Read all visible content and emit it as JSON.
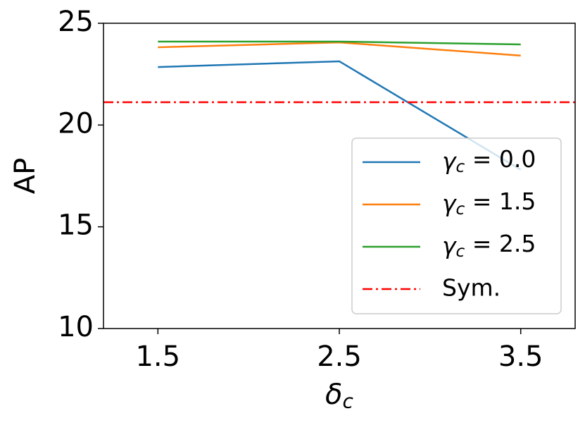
{
  "chart_data": {
    "type": "line",
    "x": [
      1.5,
      2.5,
      3.5
    ],
    "xlabel": "δc",
    "ylabel": "AP",
    "xlim": [
      1.2,
      3.8
    ],
    "ylim": [
      10,
      25
    ],
    "xticks": [
      1.5,
      2.5,
      3.5
    ],
    "yticks": [
      10,
      15,
      20,
      25
    ],
    "series": [
      {
        "name": "γc = 0.0",
        "color": "#1f77b4",
        "values": [
          22.85,
          23.13,
          17.8
        ]
      },
      {
        "name": "γc = 1.5",
        "color": "#ff7f0e",
        "values": [
          23.82,
          24.06,
          23.41
        ]
      },
      {
        "name": "γc = 2.5",
        "color": "#2ca02c",
        "values": [
          24.1,
          24.1,
          23.96
        ]
      }
    ],
    "hlines": [
      {
        "name": "Sym.",
        "color": "#ff0000",
        "value": 21.12
      }
    ],
    "legend": "lower right"
  }
}
